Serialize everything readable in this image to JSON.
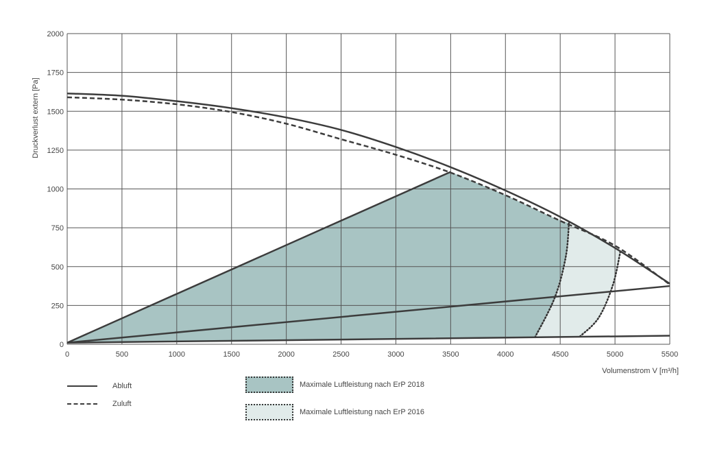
{
  "chart_data": {
    "type": "line",
    "xlabel": "Volumenstrom V [m³/h]",
    "ylabel": "Druckverlust extern [Pa]",
    "xlim": [
      0,
      5500
    ],
    "ylim": [
      0,
      2000
    ],
    "xticks": [
      "0",
      "500",
      "1000",
      "1500",
      "2000",
      "2500",
      "3000",
      "3500",
      "4000",
      "4500",
      "5000",
      "5500"
    ],
    "yticks": [
      "0",
      "250",
      "500",
      "750",
      "1000",
      "1250",
      "1500",
      "1750",
      "2000"
    ],
    "grid": true,
    "series": [
      {
        "name": "Abluft",
        "style": "solid",
        "x": [
          0,
          500,
          1000,
          1500,
          2000,
          2500,
          3000,
          3500,
          4000,
          4500,
          5000,
          5500
        ],
        "y": [
          1615,
          1600,
          1565,
          1520,
          1460,
          1380,
          1270,
          1140,
          990,
          820,
          620,
          390
        ]
      },
      {
        "name": "Zuluft",
        "style": "dashed",
        "x": [
          0,
          500,
          1000,
          1500,
          2000,
          2500,
          3000,
          3500,
          4000,
          4500,
          5000,
          5500
        ],
        "y": [
          1590,
          1575,
          1545,
          1495,
          1420,
          1320,
          1220,
          1105,
          960,
          795,
          635,
          385
        ]
      },
      {
        "style": "solid",
        "x": [
          0,
          3500
        ],
        "y": [
          10,
          1110
        ]
      },
      {
        "style": "solid",
        "x": [
          0,
          5500
        ],
        "y": [
          10,
          375
        ]
      },
      {
        "style": "solid",
        "x": [
          0,
          5500
        ],
        "y": [
          10,
          55
        ]
      }
    ],
    "regions": [
      {
        "name": "Maximale Luftleistung nach ErP 2018",
        "color": "#a8c4c3",
        "boundary": [
          [
            0,
            10
          ],
          [
            3500,
            1110
          ],
          [
            4000,
            960
          ],
          [
            4450,
            810
          ],
          [
            4580,
            780
          ],
          [
            4550,
            560
          ],
          [
            4450,
            300
          ],
          [
            4270,
            45
          ],
          [
            0,
            10
          ]
        ]
      },
      {
        "name": "Maximale Luftleistung nach ErP 2016",
        "color": "#e1ebea",
        "boundary": [
          [
            4580,
            780
          ],
          [
            4720,
            730
          ],
          [
            5050,
            600
          ],
          [
            4980,
            380
          ],
          [
            4850,
            170
          ],
          [
            4680,
            50
          ],
          [
            4270,
            45
          ],
          [
            4450,
            300
          ],
          [
            4550,
            560
          ]
        ]
      }
    ],
    "dotted_boundaries": [
      {
        "x": [
          4270,
          4450,
          4550,
          4580
        ],
        "y": [
          45,
          300,
          560,
          780
        ]
      },
      {
        "x": [
          4680,
          4850,
          4980,
          5050
        ],
        "y": [
          50,
          170,
          380,
          600
        ]
      }
    ]
  },
  "legend": {
    "abluft": "Abluft",
    "zuluft": "Zuluft",
    "erp2018": "Maximale Luftleistung nach ErP 2018",
    "erp2016": "Maximale Luftleistung nach ErP 2016"
  },
  "colors": {
    "line": "#3c3c3c",
    "grid": "#555555",
    "region2018": "#a8c4c3",
    "region2016": "#e1ebea"
  }
}
